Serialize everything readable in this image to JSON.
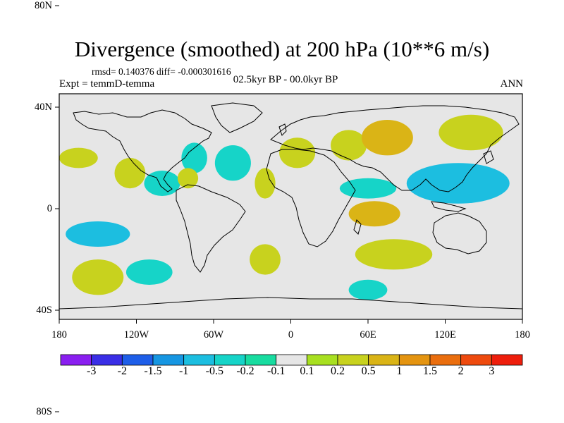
{
  "plot": {
    "title": "Divergence (smoothed) at 200 hPa (10**6 m/s)",
    "stats": "rmsd= 0.140376 diff= -0.000301616",
    "expt": "Expt = temmD-temma",
    "period": "02.5kyr BP - 00.0kyr BP",
    "season": "ANN"
  },
  "axes": {
    "lat_labels": [
      "80N",
      "40N",
      "0",
      "40S",
      "80S"
    ],
    "lat_values": [
      80,
      40,
      0,
      -40,
      -80
    ],
    "lon_labels": [
      "180",
      "120W",
      "60W",
      "0",
      "60E",
      "120E",
      "180"
    ],
    "lon_values": [
      -180,
      -120,
      -60,
      0,
      60,
      120,
      180
    ]
  },
  "colorbar": {
    "labels": [
      "-3",
      "-2",
      "-1.5",
      "-1",
      "-0.5",
      "-0.2",
      "-0.1",
      "0.1",
      "0.2",
      "0.5",
      "1",
      "1.5",
      "2",
      "3"
    ],
    "colors": [
      "#8a1ff0",
      "#3a2ee6",
      "#1e5ee8",
      "#1696e2",
      "#1cbee0",
      "#16d4c8",
      "#18dca0",
      "#e6e6e6",
      "#a8e020",
      "#c8d21e",
      "#dab416",
      "#e49410",
      "#ea6e0e",
      "#ee4a0e",
      "#ee1e0c"
    ]
  },
  "map": {
    "background_color": "#e6e6e6",
    "region_features": [
      {
        "name": "north-pacific-positive",
        "lon": -165,
        "lat": 20,
        "rx": 15,
        "ry": 4,
        "level": "0.2"
      },
      {
        "name": "central-pacific-positive",
        "lon": -125,
        "lat": 14,
        "rx": 12,
        "ry": 6,
        "level": "0.2"
      },
      {
        "name": "east-pacific-negative-north",
        "lon": -100,
        "lat": 10,
        "rx": 14,
        "ry": 5,
        "level": "-0.2"
      },
      {
        "name": "caribbean-negative",
        "lon": -75,
        "lat": 20,
        "rx": 10,
        "ry": 6,
        "level": "-0.2"
      },
      {
        "name": "central-america-positive",
        "lon": -80,
        "lat": 12,
        "rx": 8,
        "ry": 4,
        "level": "0.2"
      },
      {
        "name": "north-atlantic-negative",
        "lon": -45,
        "lat": 18,
        "rx": 14,
        "ry": 7,
        "level": "-0.2"
      },
      {
        "name": "mid-atlantic-positive",
        "lon": -20,
        "lat": 10,
        "rx": 8,
        "ry": 6,
        "level": "0.2"
      },
      {
        "name": "sahara-positive",
        "lon": 5,
        "lat": 22,
        "rx": 14,
        "ry": 6,
        "level": "0.2"
      },
      {
        "name": "arabia-positive",
        "lon": 45,
        "lat": 25,
        "rx": 14,
        "ry": 6,
        "level": "0.2"
      },
      {
        "name": "asia-positive",
        "lon": 75,
        "lat": 28,
        "rx": 20,
        "ry": 7,
        "level": "0.5"
      },
      {
        "name": "west-pacific-positive",
        "lon": 140,
        "lat": 30,
        "rx": 25,
        "ry": 7,
        "level": "0.2"
      },
      {
        "name": "west-pacific-negative",
        "lon": 130,
        "lat": 10,
        "rx": 40,
        "ry": 8,
        "level": "-0.5"
      },
      {
        "name": "indian-ocean-positive",
        "lon": 65,
        "lat": -2,
        "rx": 20,
        "ry": 5,
        "level": "0.5"
      },
      {
        "name": "indian-ocean-negative",
        "lon": 60,
        "lat": 8,
        "rx": 22,
        "ry": 4,
        "level": "-0.2"
      },
      {
        "name": "south-indian-positive",
        "lon": 80,
        "lat": -18,
        "rx": 30,
        "ry": 6,
        "level": "0.2"
      },
      {
        "name": "south-pacific-negative",
        "lon": -150,
        "lat": -10,
        "rx": 25,
        "ry": 5,
        "level": "-0.5"
      },
      {
        "name": "south-pacific-positive",
        "lon": -150,
        "lat": -27,
        "rx": 20,
        "ry": 7,
        "level": "0.2"
      },
      {
        "name": "southeast-pacific-negative",
        "lon": -110,
        "lat": -25,
        "rx": 18,
        "ry": 5,
        "level": "-0.2"
      },
      {
        "name": "south-atlantic-positive",
        "lon": -20,
        "lat": -20,
        "rx": 12,
        "ry": 6,
        "level": "0.2"
      },
      {
        "name": "southern-africa-negative",
        "lon": 60,
        "lat": -32,
        "rx": 15,
        "ry": 4,
        "level": "-0.2"
      }
    ]
  }
}
